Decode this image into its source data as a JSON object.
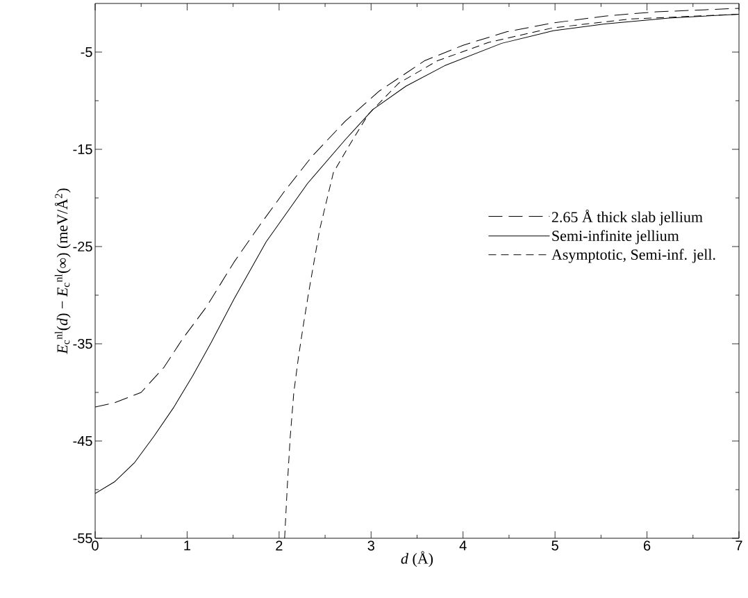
{
  "chart_data": {
    "type": "line",
    "xlabel": "*d* (Å)",
    "ylabel": "*E*$_{c}$$^{nl}$(*d*) − *E*$_{c}$$^{nl}$(∞) (meV/Å$^{2}$)",
    "xlim": [
      0,
      7
    ],
    "ylim": [
      -55,
      0
    ],
    "xticks": [
      0,
      {
        "value": 0.5,
        "label": null
      },
      1,
      {
        "value": 1.5,
        "label": null
      },
      2,
      {
        "value": 2.5,
        "label": null
      },
      3,
      {
        "value": 3.5,
        "label": null
      },
      4,
      {
        "value": 4.5,
        "label": null
      },
      5,
      {
        "value": 5.5,
        "label": null
      },
      6,
      {
        "value": 6.5,
        "label": null
      },
      7
    ],
    "yticks": [
      -55,
      {
        "value": -50,
        "label": null
      },
      -45,
      {
        "value": -40,
        "label": null
      },
      -35,
      {
        "value": -30,
        "label": null
      },
      -25,
      {
        "value": -20,
        "label": null
      },
      -15,
      {
        "value": -10,
        "label": null
      },
      -5
    ],
    "legend": "right",
    "series": [
      {
        "name": "2.65 Å thick slab jellium",
        "color": "#000000",
        "line_style": "dashed",
        "x": [
          0,
          0.2,
          0.5,
          0.75,
          0.95,
          1.21,
          1.51,
          1.79,
          2.06,
          2.36,
          2.72,
          3.09,
          3.58,
          4.0,
          4.48,
          4.98,
          5.54,
          6.1,
          7.0
        ],
        "values": [
          -41.5,
          -41.1,
          -40.0,
          -37.4,
          -34.5,
          -31.2,
          -26.6,
          -22.8,
          -19.3,
          -15.7,
          -12.1,
          -9.0,
          -5.9,
          -4.3,
          -2.9,
          -2.0,
          -1.3,
          -0.86,
          -0.5
        ]
      },
      {
        "name": "Semi-infinite jellium",
        "color": "#000000",
        "line_style": "solid",
        "x": [
          0,
          0.21,
          0.43,
          0.64,
          0.85,
          1.06,
          1.26,
          1.51,
          1.86,
          2.31,
          2.72,
          3.02,
          3.38,
          3.8,
          4.42,
          4.98,
          5.54,
          6.24,
          7.0
        ],
        "values": [
          -50.4,
          -49.2,
          -47.2,
          -44.5,
          -41.6,
          -38.3,
          -34.9,
          -30.4,
          -24.5,
          -18.5,
          -14.0,
          -10.9,
          -8.5,
          -6.4,
          -4.1,
          -2.8,
          -2.1,
          -1.5,
          -1.1
        ]
      },
      {
        "name": "Asymptotic, Semi-inf. jell.",
        "color": "#000000",
        "line_style": "dashed",
        "x": [
          2.06,
          2.09,
          2.12,
          2.16,
          2.21,
          2.26,
          2.32,
          2.44,
          2.59,
          2.75,
          2.97,
          3.3,
          3.72,
          4.28,
          4.98,
          5.82,
          7.0
        ],
        "values": [
          -55,
          -49.5,
          -44.7,
          -40.0,
          -36.4,
          -33.3,
          -29.8,
          -23.3,
          -17.4,
          -14.8,
          -11.4,
          -8.2,
          -5.9,
          -4.0,
          -2.5,
          -1.6,
          -1.1
        ]
      }
    ]
  }
}
